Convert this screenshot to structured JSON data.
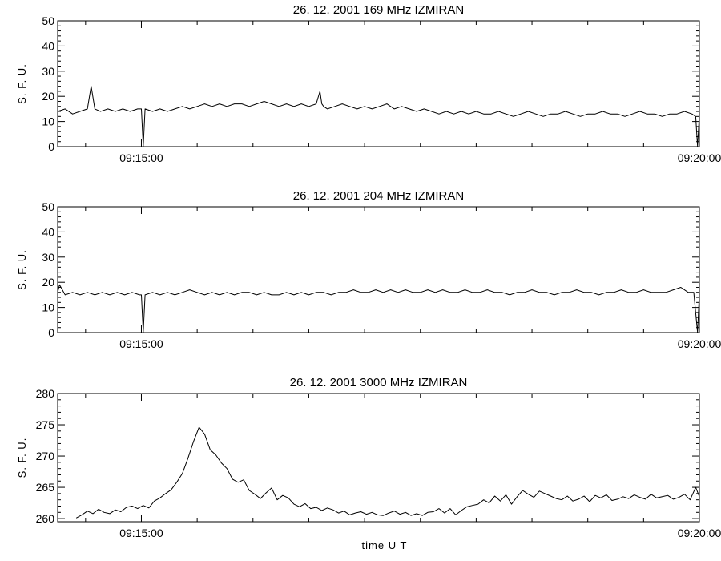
{
  "chart_data": [
    {
      "type": "line",
      "title": "26.  12.  2001    169  MHz    IZMIRAN",
      "ylabel": "S. F. U.",
      "xlabel": "",
      "ylim": [
        0,
        50
      ],
      "yticks": [
        "0",
        "10",
        "20",
        "30",
        "40",
        "50"
      ],
      "xlim": [
        "09:14:15",
        "09:20:00"
      ],
      "xtick_labels": [
        "09:15:00",
        "09:20:00"
      ],
      "series": [
        {
          "x": [
            "09:14:15",
            "09:14:19",
            "09:14:23",
            "09:14:27",
            "09:14:31",
            "09:14:33",
            "09:14:35",
            "09:14:38",
            "09:14:42",
            "09:14:46",
            "09:14:50",
            "09:14:54",
            "09:14:58",
            "09:15:00",
            "09:15:01",
            "09:15:02",
            "09:15:06",
            "09:15:10",
            "09:15:14",
            "09:15:18",
            "09:15:22",
            "09:15:26",
            "09:15:30",
            "09:15:34",
            "09:15:38",
            "09:15:42",
            "09:15:46",
            "09:15:50",
            "09:15:54",
            "09:15:58",
            "09:16:02",
            "09:16:06",
            "09:16:10",
            "09:16:14",
            "09:16:18",
            "09:16:22",
            "09:16:26",
            "09:16:30",
            "09:16:34",
            "09:16:36",
            "09:16:37",
            "09:16:38",
            "09:16:40",
            "09:16:44",
            "09:16:48",
            "09:16:52",
            "09:16:56",
            "09:17:00",
            "09:17:04",
            "09:17:08",
            "09:17:12",
            "09:17:16",
            "09:17:20",
            "09:17:24",
            "09:17:28",
            "09:17:32",
            "09:17:36",
            "09:17:40",
            "09:17:44",
            "09:17:48",
            "09:17:52",
            "09:17:56",
            "09:18:00",
            "09:18:04",
            "09:18:08",
            "09:18:12",
            "09:18:16",
            "09:18:20",
            "09:18:24",
            "09:18:28",
            "09:18:32",
            "09:18:36",
            "09:18:40",
            "09:18:44",
            "09:18:48",
            "09:18:52",
            "09:18:56",
            "09:19:00",
            "09:19:04",
            "09:19:08",
            "09:19:12",
            "09:19:16",
            "09:19:20",
            "09:19:24",
            "09:19:28",
            "09:19:32",
            "09:19:36",
            "09:19:40",
            "09:19:44",
            "09:19:48",
            "09:19:52",
            "09:19:56",
            "09:19:58",
            "09:19:59",
            "09:20:00"
          ],
          "values": [
            14,
            15,
            13,
            14,
            15,
            24,
            15,
            14,
            15,
            14,
            15,
            14,
            15,
            15,
            0,
            15,
            14,
            15,
            14,
            15,
            16,
            15,
            16,
            17,
            16,
            17,
            16,
            17,
            17,
            16,
            17,
            18,
            17,
            16,
            17,
            16,
            17,
            16,
            17,
            22,
            17,
            16,
            15,
            16,
            17,
            16,
            15,
            16,
            15,
            16,
            17,
            15,
            16,
            15,
            14,
            15,
            14,
            13,
            14,
            13,
            14,
            13,
            14,
            13,
            13,
            14,
            13,
            12,
            13,
            14,
            13,
            12,
            13,
            13,
            14,
            13,
            12,
            13,
            13,
            14,
            13,
            13,
            12,
            13,
            14,
            13,
            13,
            12,
            13,
            13,
            14,
            13,
            12,
            0,
            13
          ]
        }
      ]
    },
    {
      "type": "line",
      "title": "26.  12.  2001    204  MHz    IZMIRAN",
      "ylabel": "S. F. U.",
      "xlabel": "",
      "ylim": [
        0,
        50
      ],
      "yticks": [
        "0",
        "10",
        "20",
        "30",
        "40",
        "50"
      ],
      "xlim": [
        "09:14:15",
        "09:20:00"
      ],
      "xtick_labels": [
        "09:15:00",
        "09:20:00"
      ],
      "series": [
        {
          "x": [
            "09:14:15",
            "09:14:16",
            "09:14:19",
            "09:14:23",
            "09:14:27",
            "09:14:31",
            "09:14:35",
            "09:14:39",
            "09:14:43",
            "09:14:47",
            "09:14:51",
            "09:14:55",
            "09:14:59",
            "09:15:00",
            "09:15:01",
            "09:15:02",
            "09:15:06",
            "09:15:10",
            "09:15:14",
            "09:15:18",
            "09:15:22",
            "09:15:26",
            "09:15:30",
            "09:15:34",
            "09:15:38",
            "09:15:42",
            "09:15:46",
            "09:15:50",
            "09:15:54",
            "09:15:58",
            "09:16:02",
            "09:16:06",
            "09:16:10",
            "09:16:14",
            "09:16:18",
            "09:16:22",
            "09:16:26",
            "09:16:30",
            "09:16:34",
            "09:16:38",
            "09:16:42",
            "09:16:46",
            "09:16:50",
            "09:16:54",
            "09:16:58",
            "09:17:02",
            "09:17:06",
            "09:17:10",
            "09:17:14",
            "09:17:18",
            "09:17:22",
            "09:17:26",
            "09:17:30",
            "09:17:34",
            "09:17:38",
            "09:17:42",
            "09:17:46",
            "09:17:50",
            "09:17:54",
            "09:17:58",
            "09:18:02",
            "09:18:06",
            "09:18:10",
            "09:18:14",
            "09:18:18",
            "09:18:22",
            "09:18:26",
            "09:18:30",
            "09:18:34",
            "09:18:38",
            "09:18:42",
            "09:18:46",
            "09:18:50",
            "09:18:54",
            "09:18:58",
            "09:19:02",
            "09:19:06",
            "09:19:10",
            "09:19:14",
            "09:19:18",
            "09:19:22",
            "09:19:26",
            "09:19:30",
            "09:19:34",
            "09:19:38",
            "09:19:42",
            "09:19:46",
            "09:19:50",
            "09:19:54",
            "09:19:57",
            "09:19:59",
            "09:20:00"
          ],
          "values": [
            16,
            19,
            15,
            16,
            15,
            16,
            15,
            16,
            15,
            16,
            15,
            16,
            15,
            15,
            0,
            15,
            16,
            15,
            16,
            15,
            16,
            17,
            16,
            15,
            16,
            15,
            16,
            15,
            16,
            16,
            15,
            16,
            15,
            15,
            16,
            15,
            16,
            15,
            16,
            16,
            15,
            16,
            16,
            17,
            16,
            16,
            17,
            16,
            17,
            16,
            17,
            16,
            16,
            17,
            16,
            17,
            16,
            16,
            17,
            16,
            16,
            17,
            16,
            16,
            15,
            16,
            16,
            17,
            16,
            16,
            15,
            16,
            16,
            17,
            16,
            16,
            15,
            16,
            16,
            17,
            16,
            16,
            17,
            16,
            16,
            16,
            17,
            18,
            16,
            16,
            0,
            16
          ]
        }
      ]
    },
    {
      "type": "line",
      "title": "26.  12.  2001    3000  MHz    IZMIRAN",
      "ylabel": "S. F. U.",
      "xlabel": "time   U T",
      "ylim": [
        259.5,
        280
      ],
      "yticks": [
        "260",
        "265",
        "270",
        "275",
        "280"
      ],
      "xlim": [
        "09:14:15",
        "09:20:00"
      ],
      "xtick_labels": [
        "09:15:00",
        "09:20:00"
      ],
      "series": [
        {
          "x": [
            "09:14:25",
            "09:14:28",
            "09:14:31",
            "09:14:34",
            "09:14:37",
            "09:14:40",
            "09:14:43",
            "09:14:46",
            "09:14:49",
            "09:14:52",
            "09:14:55",
            "09:14:58",
            "09:15:01",
            "09:15:04",
            "09:15:07",
            "09:15:10",
            "09:15:13",
            "09:15:16",
            "09:15:19",
            "09:15:22",
            "09:15:25",
            "09:15:28",
            "09:15:31",
            "09:15:34",
            "09:15:37",
            "09:15:40",
            "09:15:43",
            "09:15:46",
            "09:15:49",
            "09:15:52",
            "09:15:55",
            "09:15:58",
            "09:16:01",
            "09:16:04",
            "09:16:07",
            "09:16:10",
            "09:16:13",
            "09:16:16",
            "09:16:19",
            "09:16:22",
            "09:16:25",
            "09:16:28",
            "09:16:31",
            "09:16:34",
            "09:16:37",
            "09:16:40",
            "09:16:43",
            "09:16:46",
            "09:16:49",
            "09:16:52",
            "09:16:55",
            "09:16:58",
            "09:17:01",
            "09:17:04",
            "09:17:07",
            "09:17:10",
            "09:17:13",
            "09:17:16",
            "09:17:19",
            "09:17:22",
            "09:17:25",
            "09:17:28",
            "09:17:31",
            "09:17:34",
            "09:17:37",
            "09:17:40",
            "09:17:43",
            "09:17:46",
            "09:17:49",
            "09:17:52",
            "09:17:55",
            "09:17:58",
            "09:18:01",
            "09:18:04",
            "09:18:07",
            "09:18:10",
            "09:18:13",
            "09:18:16",
            "09:18:19",
            "09:18:22",
            "09:18:25",
            "09:18:28",
            "09:18:31",
            "09:18:34",
            "09:18:37",
            "09:18:40",
            "09:18:43",
            "09:18:46",
            "09:18:49",
            "09:18:52",
            "09:18:55",
            "09:18:58",
            "09:19:01",
            "09:19:04",
            "09:19:07",
            "09:19:10",
            "09:19:13",
            "09:19:16",
            "09:19:19",
            "09:19:22",
            "09:19:25",
            "09:19:28",
            "09:19:31",
            "09:19:34",
            "09:19:37",
            "09:19:40",
            "09:19:43",
            "09:19:46",
            "09:19:49",
            "09:19:52",
            "09:19:55",
            "09:19:58",
            "09:20:00"
          ],
          "values": [
            260.1,
            260.6,
            261.2,
            260.8,
            261.5,
            261.0,
            260.8,
            261.4,
            261.1,
            261.8,
            262.0,
            261.6,
            262.1,
            261.7,
            262.8,
            263.3,
            264.0,
            264.6,
            265.8,
            267.2,
            269.6,
            272.3,
            274.6,
            273.5,
            271.0,
            270.2,
            268.9,
            268.0,
            266.3,
            265.8,
            266.2,
            264.5,
            263.9,
            263.2,
            264.1,
            264.9,
            263.0,
            263.7,
            263.3,
            262.3,
            261.9,
            262.4,
            261.6,
            261.8,
            261.3,
            261.7,
            261.4,
            260.9,
            261.2,
            260.6,
            260.9,
            261.1,
            260.7,
            261.0,
            260.6,
            260.5,
            260.9,
            261.2,
            260.7,
            261.0,
            260.5,
            260.8,
            260.5,
            261.0,
            261.1,
            261.6,
            260.9,
            261.6,
            260.6,
            261.3,
            261.9,
            262.1,
            262.3,
            263.0,
            262.5,
            263.6,
            262.8,
            263.8,
            262.3,
            263.5,
            264.5,
            263.9,
            263.4,
            264.4,
            264.0,
            263.6,
            263.2,
            263.0,
            263.6,
            262.8,
            263.1,
            263.6,
            262.7,
            263.7,
            263.3,
            263.8,
            262.9,
            263.1,
            263.5,
            263.2,
            263.8,
            263.4,
            263.1,
            263.9,
            263.3,
            263.5,
            263.7,
            263.1,
            263.4,
            263.9,
            263.0,
            265.0,
            263.5
          ]
        }
      ]
    }
  ]
}
